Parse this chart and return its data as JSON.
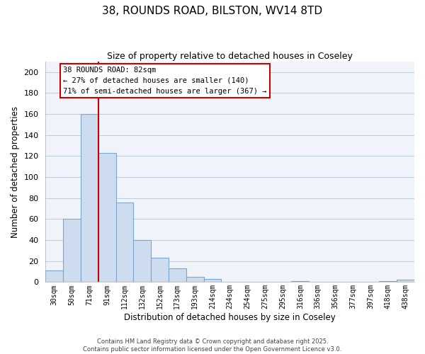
{
  "title": "38, ROUNDS ROAD, BILSTON, WV14 8TD",
  "subtitle": "Size of property relative to detached houses in Coseley",
  "xlabel": "Distribution of detached houses by size in Coseley",
  "ylabel": "Number of detached properties",
  "bar_labels": [
    "30sqm",
    "50sqm",
    "71sqm",
    "91sqm",
    "112sqm",
    "132sqm",
    "152sqm",
    "173sqm",
    "193sqm",
    "214sqm",
    "234sqm",
    "254sqm",
    "275sqm",
    "295sqm",
    "316sqm",
    "336sqm",
    "356sqm",
    "377sqm",
    "397sqm",
    "418sqm",
    "438sqm"
  ],
  "bar_values": [
    11,
    60,
    160,
    123,
    76,
    40,
    23,
    13,
    5,
    3,
    0,
    0,
    0,
    0,
    1,
    0,
    0,
    0,
    0,
    1,
    2
  ],
  "bar_color": "#cddcee",
  "bar_edge_color": "#7da6cc",
  "ylim": [
    0,
    210
  ],
  "yticks": [
    0,
    20,
    40,
    60,
    80,
    100,
    120,
    140,
    160,
    180,
    200
  ],
  "vline_color": "#cc0000",
  "annotation_title": "38 ROUNDS ROAD: 82sqm",
  "annotation_line1": "← 27% of detached houses are smaller (140)",
  "annotation_line2": "71% of semi-detached houses are larger (367) →",
  "footer_line1": "Contains HM Land Registry data © Crown copyright and database right 2025.",
  "footer_line2": "Contains public sector information licensed under the Open Government Licence v3.0.",
  "background_color": "#f0f4fa",
  "grid_color": "#b8cce4"
}
